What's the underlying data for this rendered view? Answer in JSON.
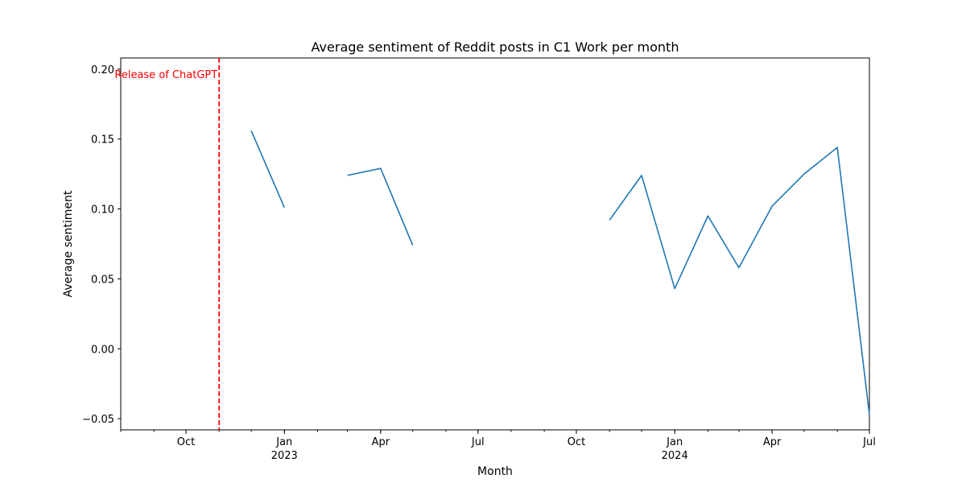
{
  "chart_data": {
    "type": "line",
    "title": "Average sentiment of Reddit posts in C1 Work per month",
    "xlabel": "Month",
    "ylabel": "Average sentiment",
    "xlim": [
      "2022-08-01",
      "2024-07-01"
    ],
    "ylim": [
      -0.058,
      0.208
    ],
    "grid": false,
    "y_ticks": [
      {
        "value": -0.05,
        "label": "−0.05"
      },
      {
        "value": 0.0,
        "label": "0.00"
      },
      {
        "value": 0.05,
        "label": "0.05"
      },
      {
        "value": 0.1,
        "label": "0.10"
      },
      {
        "value": 0.15,
        "label": "0.15"
      },
      {
        "value": 0.2,
        "label": "0.20"
      }
    ],
    "x_major_ticks": [
      {
        "date": "2022-10-01",
        "label": "Oct",
        "sublabel": ""
      },
      {
        "date": "2023-01-01",
        "label": "Jan",
        "sublabel": "2023"
      },
      {
        "date": "2023-04-01",
        "label": "Apr",
        "sublabel": ""
      },
      {
        "date": "2023-07-01",
        "label": "Jul",
        "sublabel": ""
      },
      {
        "date": "2023-10-01",
        "label": "Oct",
        "sublabel": ""
      },
      {
        "date": "2024-01-01",
        "label": "Jan",
        "sublabel": "2024"
      },
      {
        "date": "2024-04-01",
        "label": "Apr",
        "sublabel": ""
      },
      {
        "date": "2024-07-01",
        "label": "Jul",
        "sublabel": ""
      }
    ],
    "series": [
      {
        "color": "#1f77b4",
        "points": [
          {
            "x": "2022-12-01",
            "y": 0.156
          },
          {
            "x": "2023-01-01",
            "y": 0.101
          },
          {
            "x": "2023-02-01",
            "y": null
          },
          {
            "x": "2023-03-01",
            "y": 0.124
          },
          {
            "x": "2023-04-01",
            "y": 0.129
          },
          {
            "x": "2023-05-01",
            "y": 0.074
          },
          {
            "x": "2023-06-01",
            "y": null
          },
          {
            "x": "2023-07-01",
            "y": null
          },
          {
            "x": "2023-08-01",
            "y": null
          },
          {
            "x": "2023-09-01",
            "y": null
          },
          {
            "x": "2023-10-01",
            "y": null
          },
          {
            "x": "2023-11-01",
            "y": 0.092
          },
          {
            "x": "2023-12-01",
            "y": 0.124
          },
          {
            "x": "2024-01-01",
            "y": 0.043
          },
          {
            "x": "2024-02-01",
            "y": 0.095
          },
          {
            "x": "2024-03-01",
            "y": 0.058
          },
          {
            "x": "2024-04-01",
            "y": 0.102
          },
          {
            "x": "2024-05-01",
            "y": 0.125
          },
          {
            "x": "2024-06-01",
            "y": 0.144
          },
          {
            "x": "2024-07-01",
            "y": -0.047
          }
        ]
      }
    ],
    "annotations": [
      {
        "type": "vline",
        "x": "2022-11-01",
        "label": "Release of ChatGPT",
        "color": "#ff0000",
        "style": "dashed"
      }
    ]
  }
}
